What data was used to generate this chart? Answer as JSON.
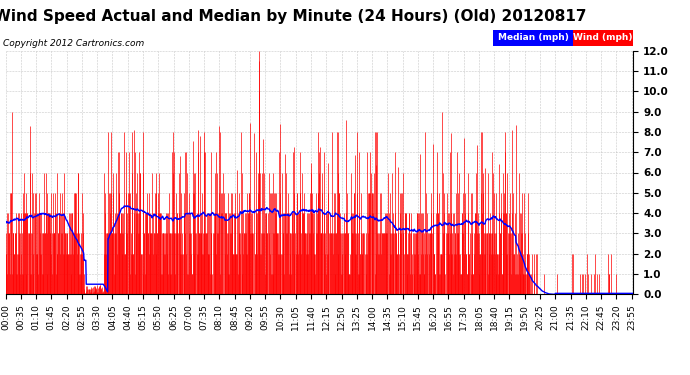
{
  "title": "Wind Speed Actual and Median by Minute (24 Hours) (Old) 20120817",
  "copyright": "Copyright 2012 Cartronics.com",
  "legend_labels": [
    "Median (mph)",
    "Wind (mph)"
  ],
  "ylim": [
    0.0,
    12.0
  ],
  "yticks": [
    0.0,
    1.0,
    2.0,
    3.0,
    4.0,
    5.0,
    6.0,
    7.0,
    8.0,
    9.0,
    10.0,
    11.0,
    12.0
  ],
  "bar_color": "#ff0000",
  "line_color": "#0000ff",
  "bg_color": "#ffffff",
  "grid_color": "#bbbbbb",
  "title_fontsize": 11,
  "tick_fontsize": 6.5,
  "num_minutes": 1440
}
